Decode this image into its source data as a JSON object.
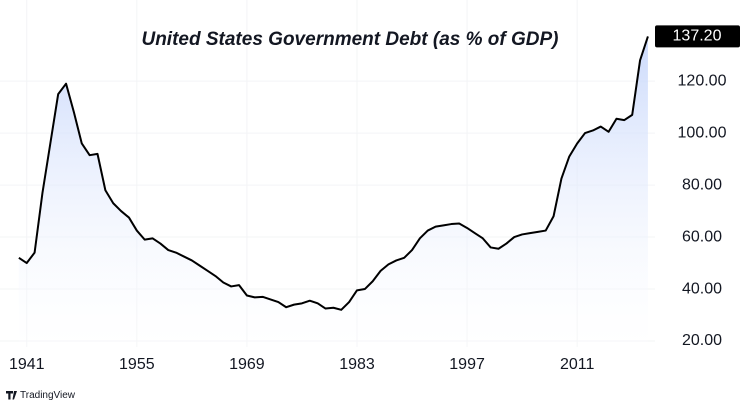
{
  "chart_data": {
    "type": "area",
    "title": "United States Government Debt (as % of GDP)",
    "branding": "TradingView",
    "color": "#000000",
    "fill_color": "#c6d6fb",
    "grid": true,
    "x": [
      1940,
      1941,
      1942,
      1943,
      1944,
      1945,
      1946,
      1947,
      1948,
      1949,
      1950,
      1951,
      1952,
      1953,
      1954,
      1955,
      1956,
      1957,
      1958,
      1959,
      1960,
      1961,
      1962,
      1963,
      1964,
      1965,
      1966,
      1967,
      1968,
      1969,
      1970,
      1971,
      1972,
      1973,
      1974,
      1975,
      1976,
      1977,
      1978,
      1979,
      1980,
      1981,
      1982,
      1983,
      1984,
      1985,
      1986,
      1987,
      1988,
      1989,
      1990,
      1991,
      1992,
      1993,
      1994,
      1995,
      1996,
      1997,
      1998,
      1999,
      2000,
      2001,
      2002,
      2003,
      2004,
      2005,
      2006,
      2007,
      2008,
      2009,
      2010,
      2011,
      2012,
      2013,
      2014,
      2015,
      2016,
      2017,
      2018,
      2019,
      2020
    ],
    "values": [
      52,
      50,
      54,
      77,
      96,
      115,
      119,
      108,
      96,
      91.5,
      92,
      78,
      73,
      70,
      67.5,
      62.5,
      59,
      59.5,
      57.5,
      55,
      54,
      52.5,
      51,
      49,
      47,
      45,
      42.5,
      41,
      41.5,
      37.5,
      36.8,
      37,
      36,
      35,
      33,
      34,
      34.5,
      35.5,
      34.5,
      32.5,
      32.8,
      32,
      35,
      39.5,
      40,
      43,
      47,
      49.5,
      51,
      52,
      55,
      59.5,
      62.5,
      64,
      64.5,
      65,
      65.2,
      63.5,
      61.5,
      59.5,
      56,
      55.5,
      57.5,
      60,
      61,
      61.5,
      62,
      62.5,
      68,
      82.5,
      91,
      96,
      100,
      101,
      102.5,
      100.5,
      105.5,
      105,
      107,
      128,
      137.2
    ],
    "value_labels": [
      null,
      null,
      null,
      null,
      null,
      null,
      null,
      null,
      null,
      null,
      null,
      null,
      null,
      null,
      null,
      null,
      null,
      null,
      null,
      null,
      null,
      null,
      null,
      null,
      null,
      null,
      null,
      null,
      null,
      null,
      null,
      null,
      null,
      null,
      null,
      null,
      null,
      null,
      null,
      null,
      null,
      null,
      null,
      null,
      null,
      null,
      null,
      null,
      null,
      null,
      null,
      null,
      null,
      null,
      null,
      null,
      null,
      null,
      null,
      null,
      null,
      null,
      null,
      null,
      null,
      null,
      null,
      null,
      null,
      null,
      null,
      null,
      null,
      null,
      null,
      null,
      null,
      null,
      null,
      null,
      "137.20"
    ],
    "xlim": [
      1937.6,
      2020.9
    ],
    "xticks": [
      1941,
      1955,
      1969,
      1983,
      1997,
      2011
    ],
    "ylim": [
      17.7,
      151.2
    ],
    "yticks": [
      {
        "value": 20,
        "label": "20.00"
      },
      {
        "value": 40,
        "label": "40.00"
      },
      {
        "value": 60,
        "label": "60.00"
      },
      {
        "value": 80,
        "label": "80.00"
      },
      {
        "value": 100,
        "label": "100.00"
      },
      {
        "value": 120,
        "label": "120.00"
      }
    ]
  }
}
